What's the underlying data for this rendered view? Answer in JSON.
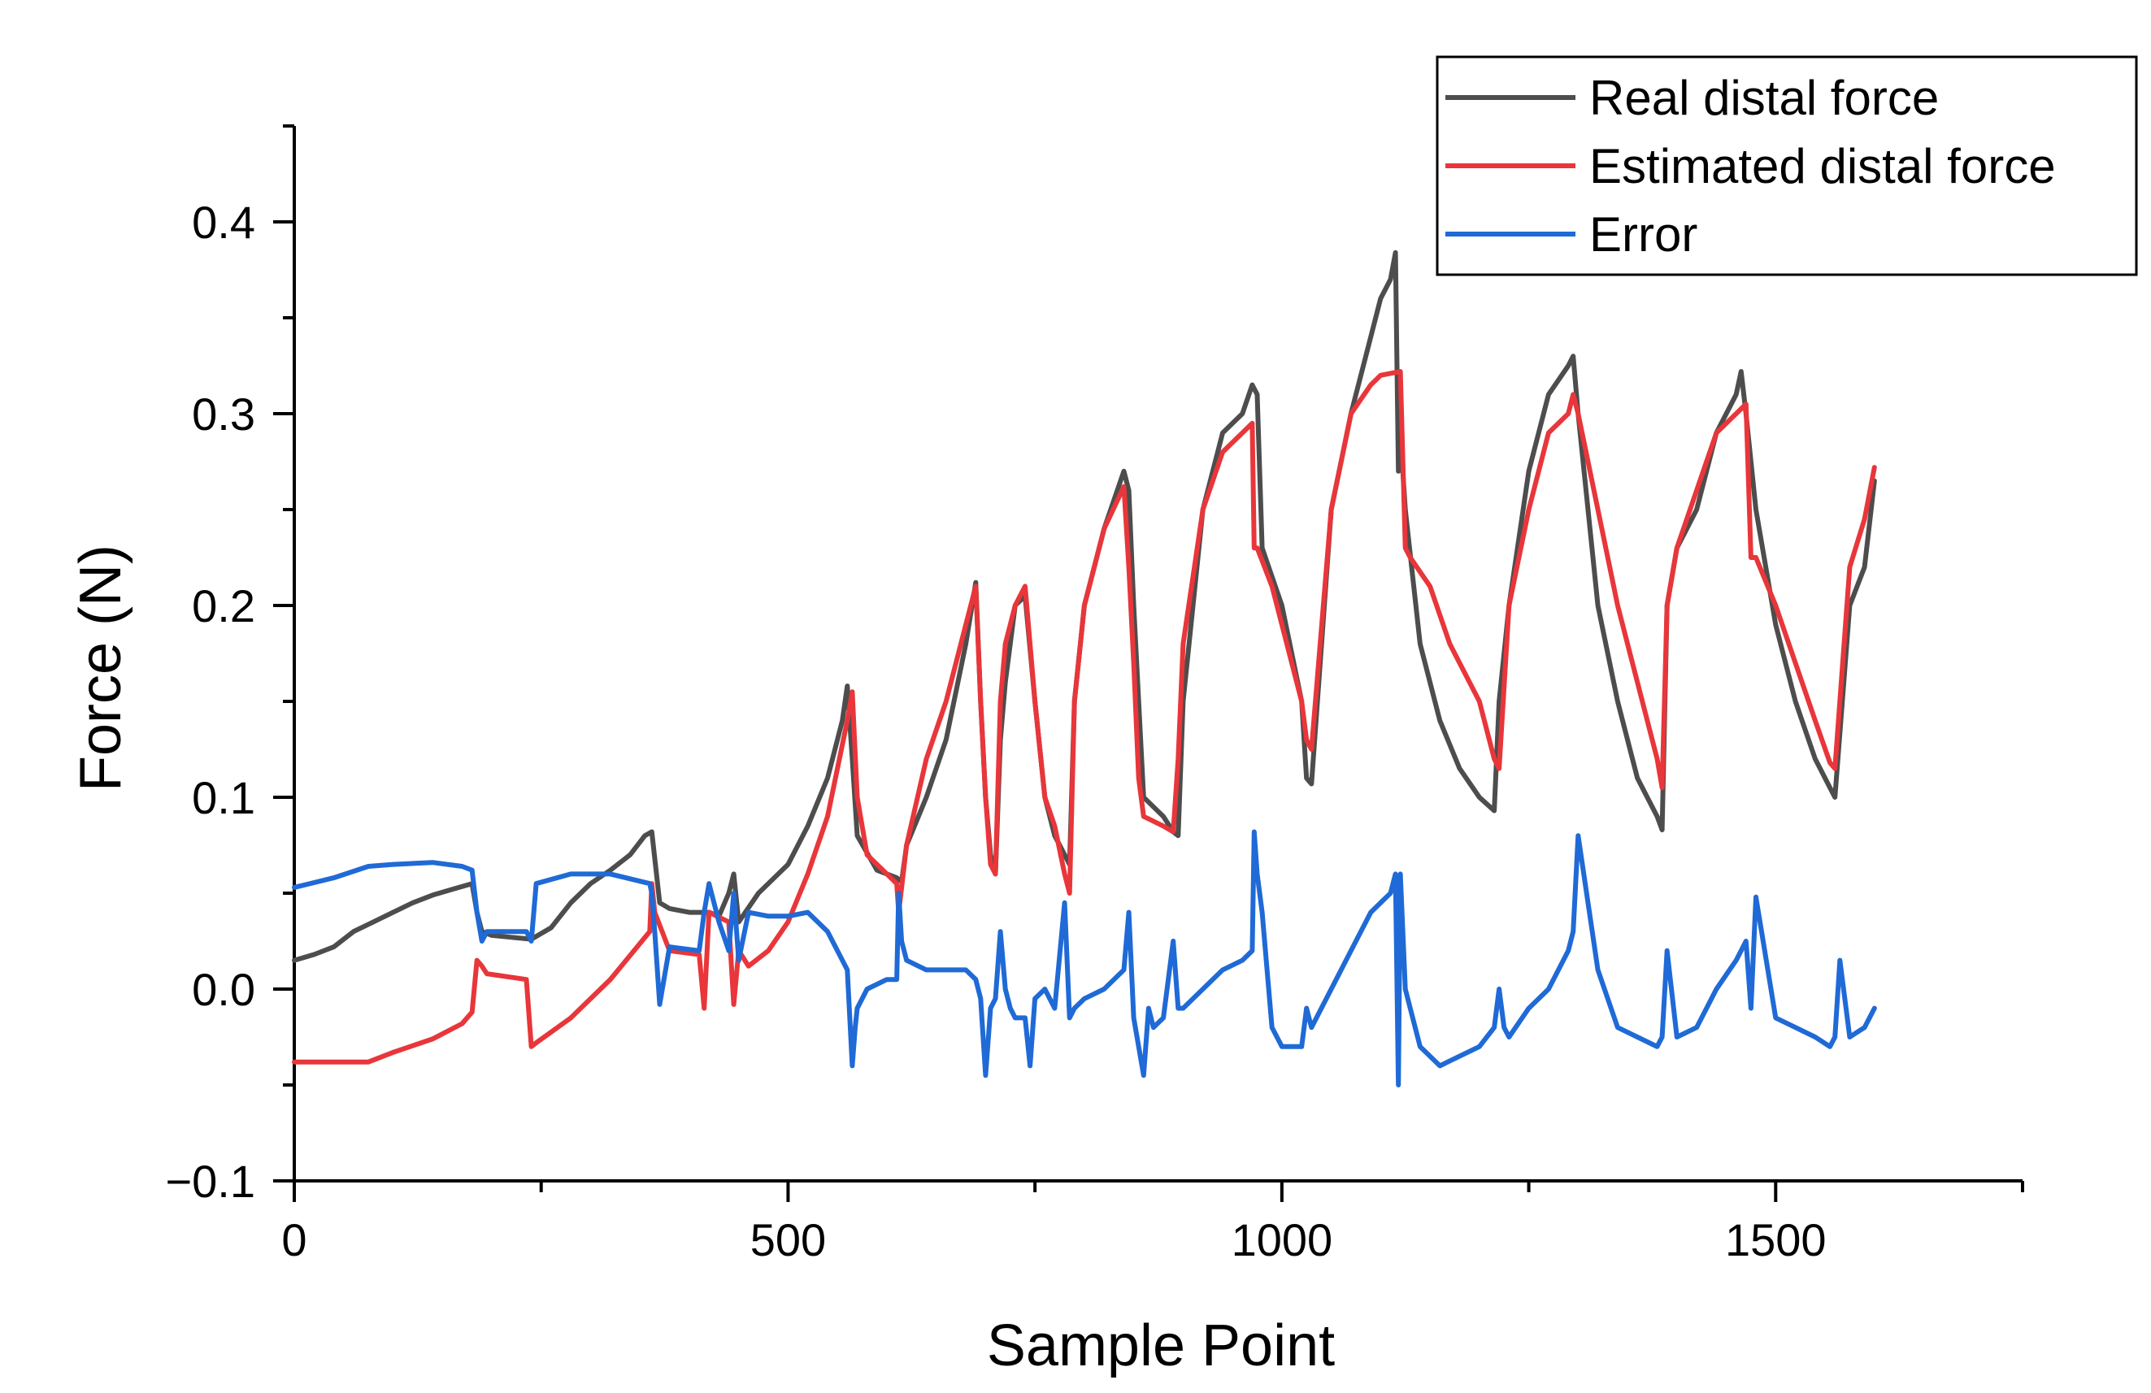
{
  "chart_data": {
    "type": "line",
    "xlabel": "Sample Point",
    "ylabel": "Force (N)",
    "xlim": [
      0,
      1750
    ],
    "ylim": [
      -0.1,
      0.45
    ],
    "xticks": [
      0,
      500,
      1000,
      1500
    ],
    "xtick_labels": [
      "0",
      "500",
      "1000",
      "1500"
    ],
    "yticks": [
      -0.1,
      0.0,
      0.1,
      0.2,
      0.3,
      0.4
    ],
    "ytick_labels": [
      "−0.1",
      "0.0",
      "0.1",
      "0.2",
      "0.3",
      "0.4"
    ],
    "grid": false,
    "legend_position": "top-right",
    "series": [
      {
        "name": "Real distal force",
        "color": "#4d4d4d",
        "x": [
          0,
          20,
          40,
          60,
          80,
          100,
          120,
          140,
          160,
          180,
          185,
          190,
          200,
          220,
          240,
          260,
          280,
          300,
          320,
          340,
          355,
          362,
          370,
          380,
          400,
          420,
          430,
          440,
          445,
          450,
          470,
          500,
          520,
          540,
          555,
          560,
          565,
          570,
          590,
          610,
          615,
          620,
          640,
          660,
          680,
          690,
          695,
          700,
          705,
          710,
          715,
          720,
          730,
          740,
          750,
          760,
          770,
          780,
          785,
          790,
          800,
          820,
          840,
          845,
          850,
          855,
          860,
          880,
          890,
          895,
          900,
          920,
          940,
          960,
          970,
          975,
          980,
          1000,
          1020,
          1025,
          1030,
          1050,
          1070,
          1090,
          1100,
          1110,
          1115,
          1118,
          1120,
          1125,
          1140,
          1160,
          1180,
          1200,
          1215,
          1220,
          1230,
          1250,
          1270,
          1290,
          1295,
          1300,
          1320,
          1340,
          1360,
          1380,
          1385,
          1390,
          1400,
          1420,
          1440,
          1460,
          1465,
          1470,
          1480,
          1500,
          1520,
          1540,
          1555,
          1560,
          1575,
          1590,
          1600
        ],
        "values": [
          0.015,
          0.018,
          0.022,
          0.03,
          0.035,
          0.04,
          0.045,
          0.049,
          0.052,
          0.055,
          0.04,
          0.03,
          0.028,
          0.027,
          0.026,
          0.032,
          0.045,
          0.055,
          0.062,
          0.07,
          0.08,
          0.082,
          0.045,
          0.042,
          0.04,
          0.04,
          0.038,
          0.05,
          0.06,
          0.035,
          0.05,
          0.065,
          0.085,
          0.11,
          0.14,
          0.158,
          0.12,
          0.08,
          0.062,
          0.058,
          0.056,
          0.075,
          0.1,
          0.13,
          0.18,
          0.212,
          0.15,
          0.1,
          0.07,
          0.06,
          0.13,
          0.16,
          0.2,
          0.205,
          0.15,
          0.1,
          0.08,
          0.07,
          0.065,
          0.15,
          0.2,
          0.24,
          0.27,
          0.26,
          0.2,
          0.15,
          0.1,
          0.09,
          0.082,
          0.08,
          0.15,
          0.25,
          0.29,
          0.3,
          0.315,
          0.31,
          0.23,
          0.2,
          0.15,
          0.11,
          0.107,
          0.25,
          0.3,
          0.34,
          0.36,
          0.37,
          0.384,
          0.27,
          0.29,
          0.25,
          0.18,
          0.14,
          0.115,
          0.1,
          0.093,
          0.15,
          0.2,
          0.27,
          0.31,
          0.325,
          0.33,
          0.3,
          0.2,
          0.15,
          0.11,
          0.09,
          0.083,
          0.2,
          0.23,
          0.25,
          0.29,
          0.31,
          0.322,
          0.3,
          0.25,
          0.19,
          0.15,
          0.12,
          0.105,
          0.1,
          0.2,
          0.22,
          0.265
        ]
      },
      {
        "name": "Estimated distal force",
        "color": "#e8363a",
        "x": [
          0,
          40,
          75,
          100,
          140,
          170,
          180,
          185,
          190,
          195,
          235,
          240,
          245,
          280,
          320,
          360,
          362,
          365,
          380,
          410,
          415,
          420,
          440,
          445,
          450,
          460,
          480,
          500,
          520,
          540,
          560,
          565,
          570,
          580,
          600,
          610,
          612,
          620,
          640,
          660,
          680,
          690,
          695,
          700,
          705,
          710,
          715,
          720,
          730,
          740,
          750,
          760,
          770,
          780,
          785,
          790,
          800,
          820,
          840,
          845,
          850,
          855,
          860,
          880,
          890,
          895,
          900,
          920,
          940,
          960,
          970,
          972,
          975,
          990,
          1000,
          1020,
          1025,
          1030,
          1050,
          1070,
          1090,
          1100,
          1120,
          1125,
          1130,
          1150,
          1170,
          1200,
          1215,
          1220,
          1230,
          1250,
          1270,
          1290,
          1295,
          1300,
          1320,
          1340,
          1360,
          1380,
          1385,
          1390,
          1400,
          1420,
          1440,
          1460,
          1470,
          1475,
          1480,
          1500,
          1520,
          1540,
          1555,
          1560,
          1575,
          1590,
          1600
        ],
        "values": [
          -0.038,
          -0.038,
          -0.038,
          -0.033,
          -0.026,
          -0.018,
          -0.012,
          0.015,
          0.012,
          0.008,
          0.005,
          -0.03,
          -0.028,
          -0.015,
          0.005,
          0.03,
          0.055,
          0.04,
          0.02,
          0.018,
          -0.01,
          0.04,
          0.035,
          -0.008,
          0.02,
          0.012,
          0.02,
          0.035,
          0.06,
          0.09,
          0.14,
          0.155,
          0.1,
          0.07,
          0.06,
          0.055,
          0.04,
          0.075,
          0.12,
          0.15,
          0.19,
          0.21,
          0.15,
          0.1,
          0.065,
          0.06,
          0.15,
          0.18,
          0.2,
          0.21,
          0.15,
          0.1,
          0.085,
          0.06,
          0.05,
          0.15,
          0.2,
          0.24,
          0.262,
          0.22,
          0.17,
          0.11,
          0.09,
          0.085,
          0.082,
          0.12,
          0.18,
          0.25,
          0.28,
          0.29,
          0.295,
          0.23,
          0.23,
          0.21,
          0.19,
          0.15,
          0.13,
          0.125,
          0.25,
          0.3,
          0.315,
          0.32,
          0.322,
          0.23,
          0.225,
          0.21,
          0.18,
          0.15,
          0.12,
          0.115,
          0.2,
          0.25,
          0.29,
          0.3,
          0.31,
          0.3,
          0.25,
          0.2,
          0.16,
          0.12,
          0.105,
          0.2,
          0.23,
          0.26,
          0.29,
          0.3,
          0.305,
          0.225,
          0.225,
          0.2,
          0.17,
          0.14,
          0.118,
          0.115,
          0.22,
          0.245,
          0.272
        ]
      },
      {
        "name": "Error",
        "color": "#1f6ad6",
        "x": [
          0,
          40,
          75,
          100,
          140,
          170,
          180,
          185,
          190,
          195,
          235,
          240,
          245,
          280,
          320,
          360,
          362,
          365,
          370,
          380,
          410,
          415,
          420,
          430,
          440,
          445,
          450,
          460,
          480,
          500,
          520,
          540,
          560,
          565,
          568,
          570,
          580,
          600,
          610,
          612,
          615,
          620,
          640,
          660,
          680,
          690,
          695,
          700,
          705,
          710,
          715,
          720,
          725,
          730,
          740,
          745,
          750,
          760,
          770,
          780,
          785,
          790,
          800,
          820,
          840,
          845,
          850,
          860,
          865,
          870,
          880,
          890,
          895,
          900,
          920,
          940,
          960,
          970,
          972,
          975,
          980,
          990,
          1000,
          1020,
          1025,
          1030,
          1050,
          1070,
          1090,
          1100,
          1110,
          1115,
          1118,
          1120,
          1125,
          1140,
          1160,
          1180,
          1200,
          1215,
          1220,
          1225,
          1230,
          1250,
          1270,
          1290,
          1295,
          1300,
          1320,
          1340,
          1360,
          1380,
          1385,
          1390,
          1400,
          1420,
          1440,
          1460,
          1465,
          1470,
          1475,
          1480,
          1500,
          1520,
          1540,
          1555,
          1560,
          1565,
          1575,
          1590,
          1600
        ],
        "values": [
          0.053,
          0.058,
          0.064,
          0.065,
          0.066,
          0.064,
          0.062,
          0.04,
          0.025,
          0.03,
          0.03,
          0.025,
          0.055,
          0.06,
          0.06,
          0.055,
          0.05,
          0.03,
          -0.008,
          0.022,
          0.02,
          0.04,
          0.055,
          0.035,
          0.02,
          0.05,
          0.015,
          0.04,
          0.038,
          0.038,
          0.04,
          0.03,
          0.01,
          -0.04,
          -0.02,
          -0.01,
          0.0,
          0.005,
          0.005,
          0.05,
          0.025,
          0.015,
          0.01,
          0.01,
          0.01,
          0.005,
          -0.005,
          -0.045,
          -0.01,
          -0.005,
          0.03,
          0.0,
          -0.01,
          -0.015,
          -0.015,
          -0.04,
          -0.005,
          0.0,
          -0.01,
          0.045,
          -0.015,
          -0.01,
          -0.005,
          0.0,
          0.01,
          0.04,
          -0.015,
          -0.045,
          -0.01,
          -0.02,
          -0.015,
          0.025,
          -0.01,
          -0.01,
          0.0,
          0.01,
          0.015,
          0.02,
          0.082,
          0.06,
          0.04,
          -0.02,
          -0.03,
          -0.03,
          -0.01,
          -0.02,
          0.0,
          0.02,
          0.04,
          0.045,
          0.05,
          0.06,
          -0.05,
          0.06,
          0.0,
          -0.03,
          -0.04,
          -0.035,
          -0.03,
          -0.02,
          0.0,
          -0.02,
          -0.025,
          -0.01,
          0.0,
          0.02,
          0.03,
          0.08,
          0.01,
          -0.02,
          -0.025,
          -0.03,
          -0.025,
          0.02,
          -0.025,
          -0.02,
          0.0,
          0.015,
          0.02,
          0.025,
          -0.01,
          0.048,
          -0.015,
          -0.02,
          -0.025,
          -0.03,
          -0.025,
          0.015,
          -0.025,
          -0.02,
          -0.01
        ]
      }
    ]
  }
}
